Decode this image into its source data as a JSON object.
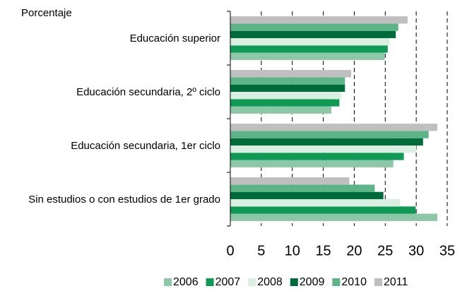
{
  "chart_data": {
    "type": "barh",
    "ylabel": "Porcentaje",
    "categories": [
      "Educación superior",
      "Educación secundaria, 2º ciclo",
      "Educación secundaria, 1er ciclo",
      "Sin estudios o con estudios de 1er grado"
    ],
    "series": [
      {
        "name": "2006",
        "color": "#8cc8a6",
        "values": [
          24.9,
          16.3,
          26.3,
          33.4
        ]
      },
      {
        "name": "2007",
        "color": "#0e9a55",
        "values": [
          25.4,
          17.6,
          28.0,
          29.9
        ]
      },
      {
        "name": "2008",
        "color": "#d9efe1",
        "values": [
          25.7,
          17.9,
          30.0,
          27.4
        ]
      },
      {
        "name": "2009",
        "color": "#006b3a",
        "values": [
          26.7,
          18.5,
          31.1,
          24.7
        ]
      },
      {
        "name": "2010",
        "color": "#5db486",
        "values": [
          27.1,
          18.5,
          32.0,
          23.3
        ]
      },
      {
        "name": "2011",
        "color": "#bfbfbf",
        "values": [
          28.6,
          19.5,
          33.4,
          19.2
        ]
      }
    ],
    "xlim": [
      0,
      35
    ],
    "xticks": [
      0,
      5,
      10,
      15,
      20,
      25,
      30,
      35
    ],
    "grid": true,
    "legend": "bottom"
  }
}
